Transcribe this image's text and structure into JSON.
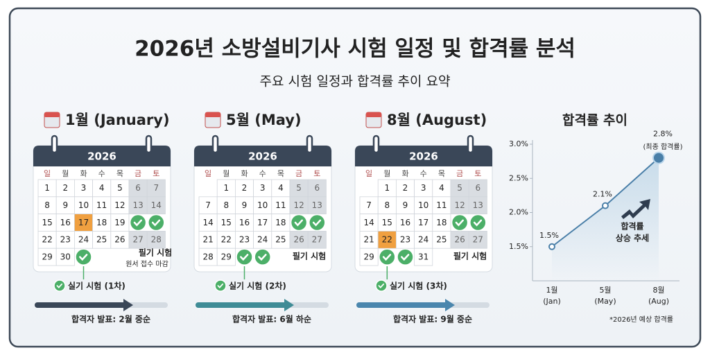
{
  "header": {
    "title": "2026년 소방설비기사 시험 일정 및 합격률 분석",
    "subtitle": "주요 시험 일정과 합격률 추이 요약"
  },
  "calendars": [
    {
      "title": "1월 (January)",
      "year": "2026",
      "weekdays": [
        "일",
        "월",
        "화",
        "수",
        "목",
        "금",
        "토"
      ],
      "weeks": [
        [
          1,
          2,
          3,
          4,
          5,
          6,
          7
        ],
        [
          8,
          9,
          10,
          11,
          12,
          13,
          14
        ],
        [
          15,
          16,
          17,
          18,
          19,
          null,
          null
        ],
        [
          22,
          23,
          24,
          25,
          26,
          27,
          28
        ],
        [
          29,
          30,
          null,
          null,
          null,
          null,
          null
        ]
      ],
      "note": "필기 시험",
      "subnote": "원서 접수 마감",
      "practical": "실기 시험 (1차)",
      "announcement": "합격자 발표: 2월 중순"
    },
    {
      "title": "5월 (May)",
      "year": "2026",
      "weekdays": [
        "일",
        "월",
        "화",
        "수",
        "목",
        "금",
        "토"
      ],
      "weeks": [
        [
          null,
          1,
          2,
          3,
          4,
          5,
          6
        ],
        [
          7,
          8,
          9,
          10,
          11,
          12,
          13
        ],
        [
          14,
          15,
          16,
          17,
          18,
          null,
          null
        ],
        [
          21,
          22,
          23,
          24,
          25,
          26,
          27
        ],
        [
          28,
          29,
          null,
          null,
          null,
          null,
          null
        ]
      ],
      "note": "필기 시험",
      "practical": "실기 시험 (2차)",
      "announcement": "합격자 발표: 6월 하순"
    },
    {
      "title": "8월 (August)",
      "year": "2026",
      "weekdays": [
        "일",
        "월",
        "화",
        "수",
        "목",
        "금",
        "토"
      ],
      "weeks": [
        [
          null,
          1,
          2,
          3,
          4,
          5,
          6
        ],
        [
          7,
          8,
          9,
          10,
          11,
          12,
          13
        ],
        [
          14,
          15,
          16,
          17,
          18,
          null,
          null
        ],
        [
          21,
          22,
          23,
          24,
          25,
          26,
          27
        ],
        [
          29,
          null,
          null,
          31,
          null,
          null,
          null
        ]
      ],
      "note": "필기 시험",
      "practical": "실기 시험 (3차)",
      "announcement": "합격자 발표: 9월 중순"
    }
  ],
  "chart_data": {
    "type": "line",
    "title": "합격률 추이",
    "categories": [
      "1월",
      "5월",
      "8월"
    ],
    "category_sublabels": [
      "(Jan)",
      "(May)",
      "(Aug)"
    ],
    "values": [
      1.5,
      2.1,
      2.8
    ],
    "value_labels": [
      "1.5%",
      "2.1%",
      "2.8%"
    ],
    "color": "#4a7fa8",
    "ylim": [
      1.0,
      3.0
    ],
    "yticks": [
      {
        "value": 1.5,
        "label": "1.5%"
      },
      {
        "value": 2.0,
        "label": "2.0%"
      },
      {
        "value": 2.5,
        "label": "2.5%"
      },
      {
        "value": 3.0,
        "label": "3.0%"
      }
    ],
    "annotations": [
      "(최종 합격률)",
      "합격률",
      "상승 추세"
    ],
    "footnote": "*2026년 예상 합격률"
  }
}
